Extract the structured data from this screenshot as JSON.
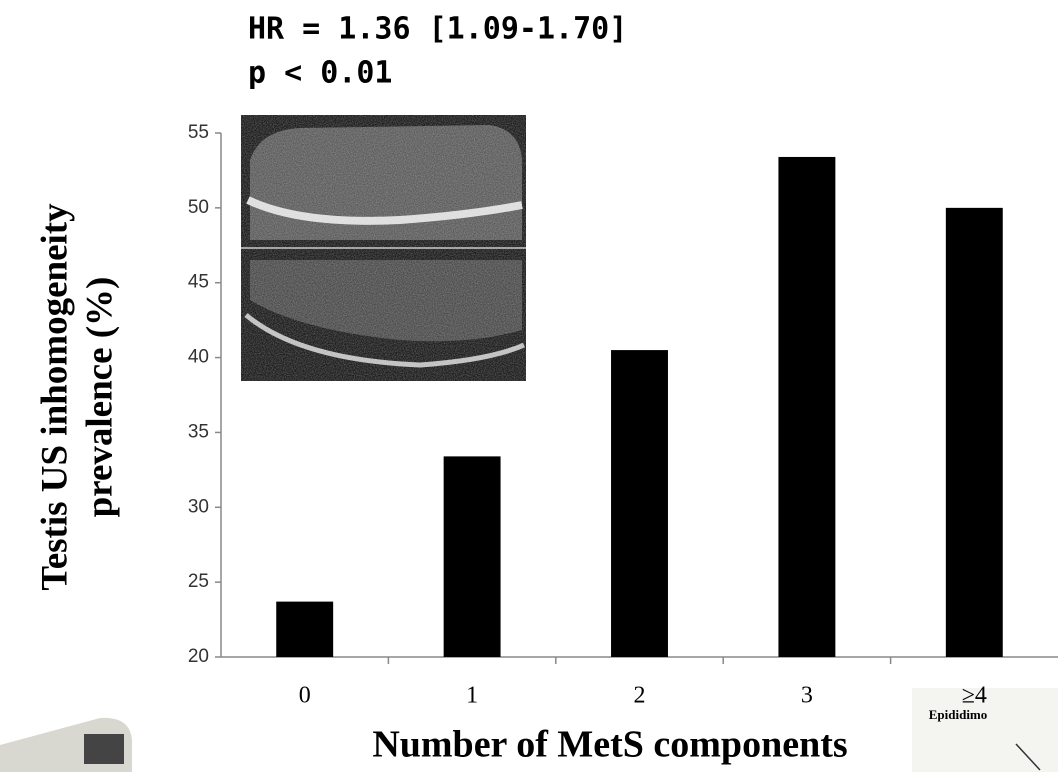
{
  "chart_data": {
    "type": "bar",
    "annotations": [
      "HR = 1.36 [1.09-1.70]",
      "p < 0.01"
    ],
    "y_label": [
      "Testis US inhomogeneity",
      "prevalence (%)"
    ],
    "x_label": "Number of MetS components",
    "categories": [
      "0",
      "1",
      "2",
      "3",
      "≥4"
    ],
    "values": [
      23.7,
      33.4,
      40.5,
      53.4,
      50
    ],
    "color": "#000000",
    "ylim": [
      20,
      55
    ],
    "yticks": [
      20,
      25,
      30,
      35,
      40,
      45,
      50,
      55
    ],
    "grid": false,
    "image_labels": [
      "Epididimo"
    ]
  }
}
